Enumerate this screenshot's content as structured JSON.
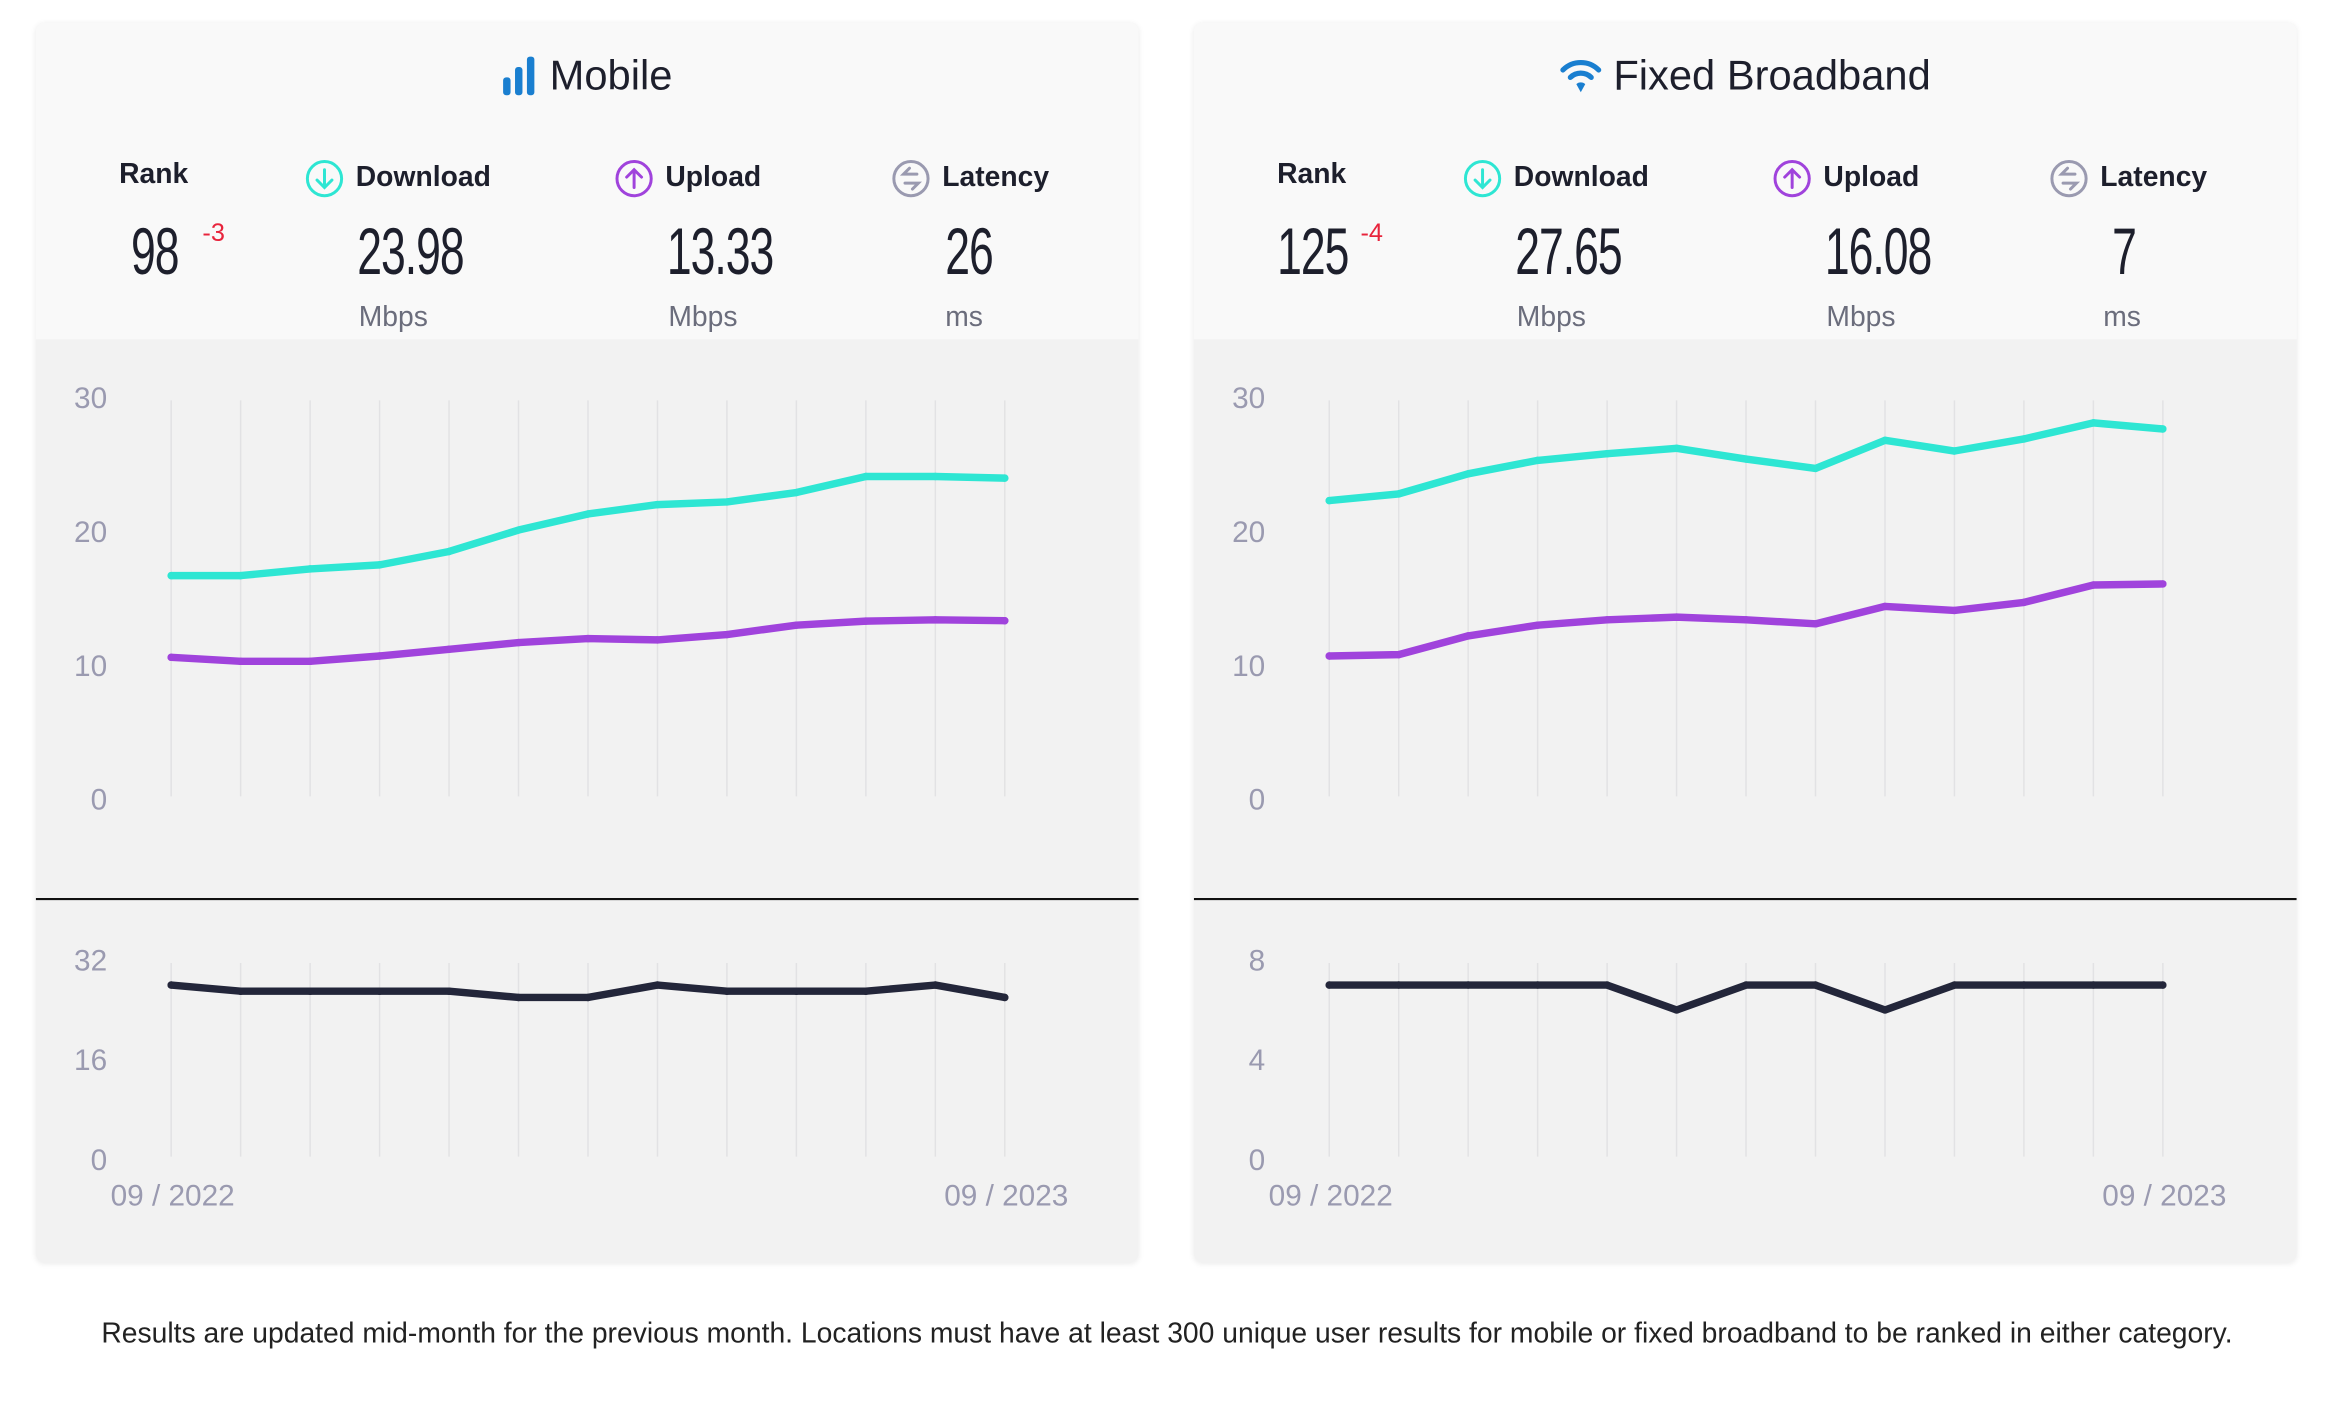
{
  "colors": {
    "download": "#2ee6d3",
    "upload": "#a043dc",
    "latency": "#23263a",
    "icon_blue": "#1a7fd0",
    "rank_change": "#e8243c",
    "axis_text": "#9a9ab0"
  },
  "cards": [
    {
      "title": "Mobile",
      "icon": "signal-bars-icon",
      "rank": {
        "label": "Rank",
        "value": "98",
        "change": "-3"
      },
      "download": {
        "label": "Download",
        "value": "23.98",
        "unit": "Mbps",
        "icon": "download-arrow-icon"
      },
      "upload": {
        "label": "Upload",
        "value": "13.33",
        "unit": "Mbps",
        "icon": "upload-arrow-icon"
      },
      "latency": {
        "label": "Latency",
        "value": "26",
        "unit": "ms",
        "icon": "latency-arrows-icon"
      }
    },
    {
      "title": "Fixed Broadband",
      "icon": "wifi-icon",
      "rank": {
        "label": "Rank",
        "value": "125",
        "change": "-4"
      },
      "download": {
        "label": "Download",
        "value": "27.65",
        "unit": "Mbps",
        "icon": "download-arrow-icon"
      },
      "upload": {
        "label": "Upload",
        "value": "16.08",
        "unit": "Mbps",
        "icon": "upload-arrow-icon"
      },
      "latency": {
        "label": "Latency",
        "value": "7",
        "unit": "ms",
        "icon": "latency-arrows-icon"
      }
    }
  ],
  "chart_data": [
    {
      "type": "line",
      "panel": "Mobile speed",
      "ylim": [
        0,
        30
      ],
      "yticks": [
        "0",
        "10",
        "20",
        "30"
      ],
      "grid": "vertical",
      "x": [
        "09/2022",
        "10/2022",
        "11/2022",
        "12/2022",
        "01/2023",
        "02/2023",
        "03/2023",
        "04/2023",
        "05/2023",
        "06/2023",
        "07/2023",
        "08/2023",
        "09/2023"
      ],
      "series": [
        {
          "key": "download",
          "values": [
            16.7,
            16.7,
            17.2,
            17.5,
            18.5,
            20.1,
            21.3,
            22.0,
            22.2,
            22.9,
            24.1,
            24.1,
            23.98
          ]
        },
        {
          "key": "upload",
          "values": [
            10.6,
            10.3,
            10.3,
            10.7,
            11.2,
            11.7,
            12.0,
            11.9,
            12.3,
            13.0,
            13.3,
            13.4,
            13.33
          ]
        }
      ]
    },
    {
      "type": "line",
      "panel": "Mobile latency",
      "ylim": [
        0,
        32
      ],
      "yticks": [
        "0",
        "16",
        "32"
      ],
      "grid": "vertical",
      "x": [
        "09/2022",
        "10/2022",
        "11/2022",
        "12/2022",
        "01/2023",
        "02/2023",
        "03/2023",
        "04/2023",
        "05/2023",
        "06/2023",
        "07/2023",
        "08/2023",
        "09/2023"
      ],
      "x_tick_labels": [
        "09 / 2022",
        "09 / 2023"
      ],
      "series": [
        {
          "key": "latency",
          "values": [
            28,
            27,
            27,
            27,
            27,
            26,
            26,
            28,
            27,
            27,
            27,
            28,
            26
          ]
        }
      ]
    },
    {
      "type": "line",
      "panel": "Fixed Broadband speed",
      "ylim": [
        0,
        30
      ],
      "yticks": [
        "0",
        "10",
        "20",
        "30"
      ],
      "grid": "vertical",
      "x": [
        "09/2022",
        "10/2022",
        "11/2022",
        "12/2022",
        "01/2023",
        "02/2023",
        "03/2023",
        "04/2023",
        "05/2023",
        "06/2023",
        "07/2023",
        "08/2023",
        "09/2023"
      ],
      "series": [
        {
          "key": "download",
          "values": [
            22.3,
            22.8,
            24.3,
            25.3,
            25.8,
            26.2,
            25.4,
            24.7,
            26.8,
            26.0,
            26.9,
            28.1,
            27.65
          ]
        },
        {
          "key": "upload",
          "values": [
            10.7,
            10.8,
            12.2,
            13.0,
            13.4,
            13.6,
            13.4,
            13.1,
            14.4,
            14.1,
            14.7,
            16.0,
            16.08
          ]
        }
      ]
    },
    {
      "type": "line",
      "panel": "Fixed Broadband latency",
      "ylim": [
        0,
        8
      ],
      "yticks": [
        "0",
        "4",
        "8"
      ],
      "grid": "vertical",
      "x": [
        "09/2022",
        "10/2022",
        "11/2022",
        "12/2022",
        "01/2023",
        "02/2023",
        "03/2023",
        "04/2023",
        "05/2023",
        "06/2023",
        "07/2023",
        "08/2023",
        "09/2023"
      ],
      "x_tick_labels": [
        "09 / 2022",
        "09 / 2023"
      ],
      "series": [
        {
          "key": "latency",
          "values": [
            7,
            7,
            7,
            7,
            7,
            6,
            7,
            7,
            6,
            7,
            7,
            7,
            7
          ]
        }
      ]
    }
  ],
  "footer": "Results are updated mid-month for the previous month. Locations must have at least 300 unique user results for mobile or fixed broadband to be ranked in either category."
}
